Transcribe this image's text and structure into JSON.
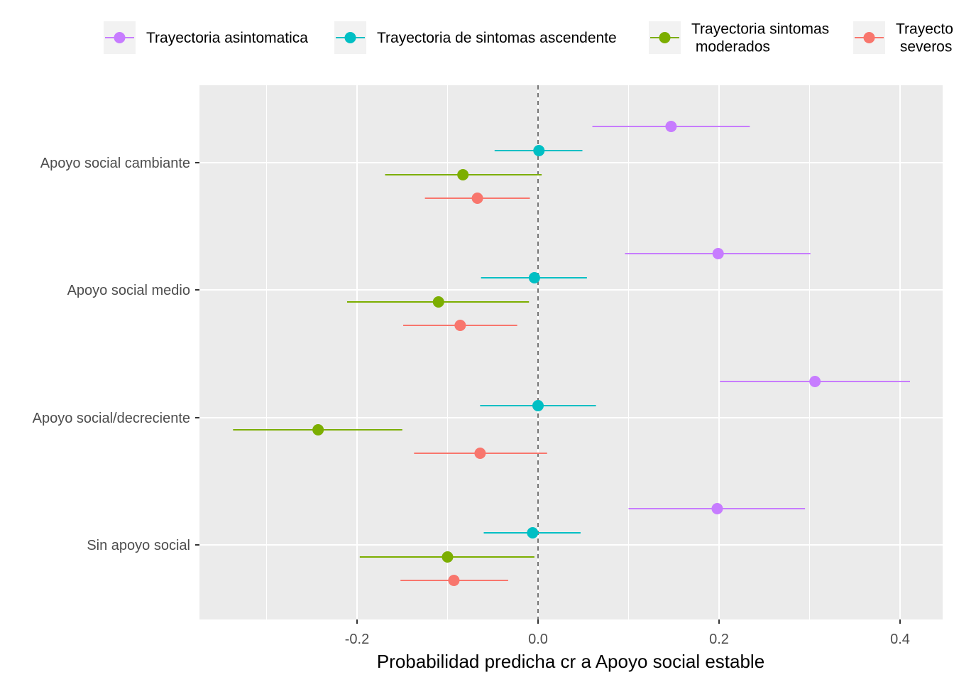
{
  "chart_data": {
    "type": "scatter",
    "subtype": "point-range / forest plot",
    "title": "",
    "xlabel": "Probabilidad predicha cr a Apoyo social estable",
    "ylabel": "",
    "xlim": [
      -0.375,
      0.4
    ],
    "x_ticks": [
      -0.2,
      0.0,
      0.2,
      0.4
    ],
    "x_tick_labels": [
      "-0.2",
      "0.0",
      "0.2",
      "0.4"
    ],
    "reference_line": {
      "x": 0,
      "style": "dashed"
    },
    "grid": true,
    "legend_position": "top",
    "categories": [
      "Apoyo social cambiante",
      "Apoyo social medio",
      "Apoyo social/decreciente",
      "Sin apoyo social"
    ],
    "series": [
      {
        "name": "Trayectoria asintomatica",
        "legend_lines": [
          "Trayectoria asintomatica"
        ],
        "color": "#C77CFF",
        "values": [
          0.147,
          0.199,
          0.306,
          0.198
        ],
        "lower": [
          0.06,
          0.096,
          0.201,
          0.1
        ],
        "upper": [
          0.234,
          0.301,
          0.411,
          0.295
        ]
      },
      {
        "name": "Trayectoria de sintomas ascendente",
        "legend_lines": [
          "Trayectoria de sintomas ascendente"
        ],
        "color": "#00BFC4",
        "values": [
          0.001,
          -0.004,
          0.0,
          -0.006
        ],
        "lower": [
          -0.048,
          -0.063,
          -0.064,
          -0.06
        ],
        "upper": [
          0.049,
          0.054,
          0.064,
          0.047
        ]
      },
      {
        "name": "Trayectoria sintomas moderados",
        "legend_lines": [
          "Trayectoria sintomas",
          " moderados"
        ],
        "color": "#7CAE00",
        "values": [
          -0.083,
          -0.11,
          -0.243,
          -0.1
        ],
        "lower": [
          -0.169,
          -0.211,
          -0.337,
          -0.197
        ],
        "upper": [
          0.004,
          -0.01,
          -0.15,
          -0.004
        ]
      },
      {
        "name": "Trayectoria sintomas severos",
        "legend_lines": [
          "Trayectoria sintomas",
          " severos"
        ],
        "color": "#F8766D",
        "values": [
          -0.067,
          -0.086,
          -0.064,
          -0.093
        ],
        "lower": [
          -0.125,
          -0.149,
          -0.137,
          -0.152
        ],
        "upper": [
          -0.009,
          -0.023,
          0.01,
          -0.033
        ]
      }
    ]
  }
}
